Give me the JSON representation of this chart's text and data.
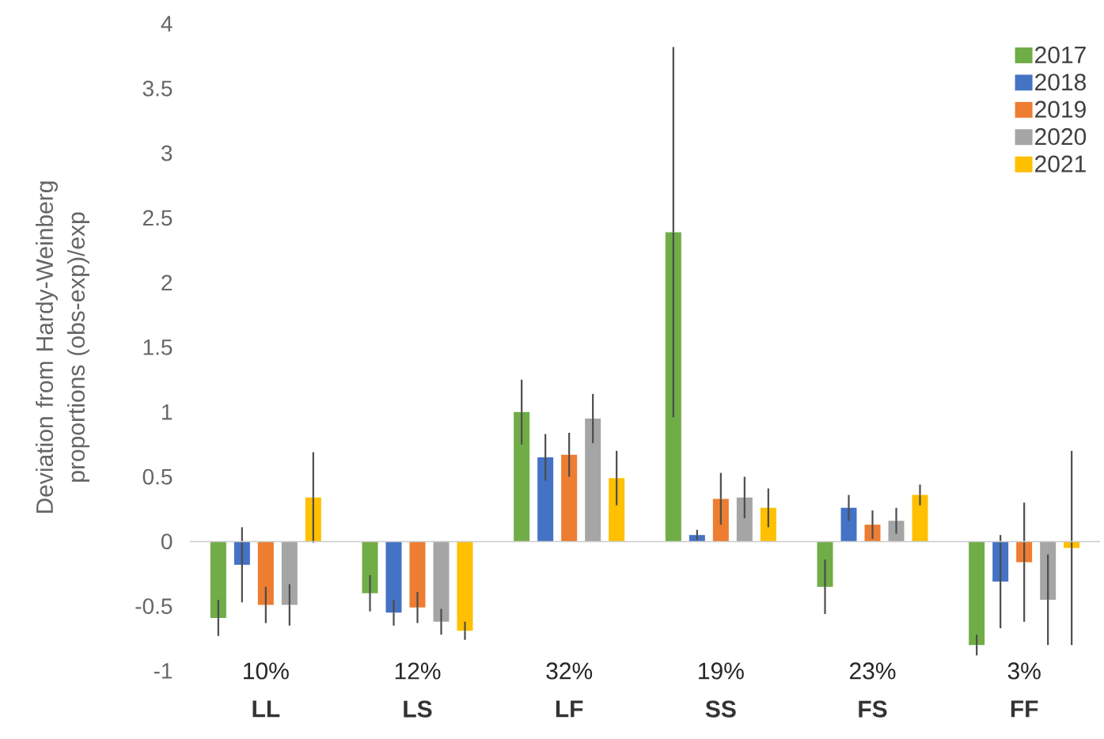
{
  "chart_data": {
    "type": "bar",
    "ylabel": "Deviation from Hardy-Weinberg proportions  (obs-exp)/exp",
    "categories": [
      "LL",
      "LS",
      "LF",
      "SS",
      "FS",
      "FF"
    ],
    "annotations": [
      "10%",
      "12%",
      "32%",
      "19%",
      "23%",
      "3%"
    ],
    "series": [
      {
        "name": "2017",
        "color": "#70ad47",
        "values": [
          -0.59,
          -0.4,
          1.0,
          2.39,
          -0.35,
          -0.8
        ],
        "errors": [
          0.14,
          0.14,
          0.25,
          1.43,
          0.21,
          0.08
        ]
      },
      {
        "name": "2018",
        "color": "#4472c4",
        "values": [
          -0.18,
          -0.55,
          0.65,
          0.05,
          0.26,
          -0.31
        ],
        "errors": [
          0.29,
          0.1,
          0.18,
          0.04,
          0.1,
          0.36
        ]
      },
      {
        "name": "2019",
        "color": "#ed7d31",
        "values": [
          -0.49,
          -0.51,
          0.67,
          0.33,
          0.13,
          -0.16
        ],
        "errors": [
          0.14,
          0.12,
          0.17,
          0.2,
          0.11,
          0.46
        ]
      },
      {
        "name": "2020",
        "color": "#a5a5a5",
        "values": [
          -0.49,
          -0.62,
          0.95,
          0.34,
          0.16,
          -0.45
        ],
        "errors": [
          0.16,
          0.1,
          0.19,
          0.16,
          0.1,
          0.35
        ]
      },
      {
        "name": "2021",
        "color": "#ffc000",
        "values": [
          0.34,
          -0.69,
          0.49,
          0.26,
          0.36,
          -0.05
        ],
        "errors": [
          0.35,
          0.07,
          0.21,
          0.15,
          0.08,
          0.75
        ]
      }
    ],
    "ylim": [
      -1,
      4
    ],
    "yticks": [
      -1,
      -0.5,
      0,
      0.5,
      1,
      1.5,
      2,
      2.5,
      3,
      3.5,
      4
    ],
    "legend": "top right"
  }
}
